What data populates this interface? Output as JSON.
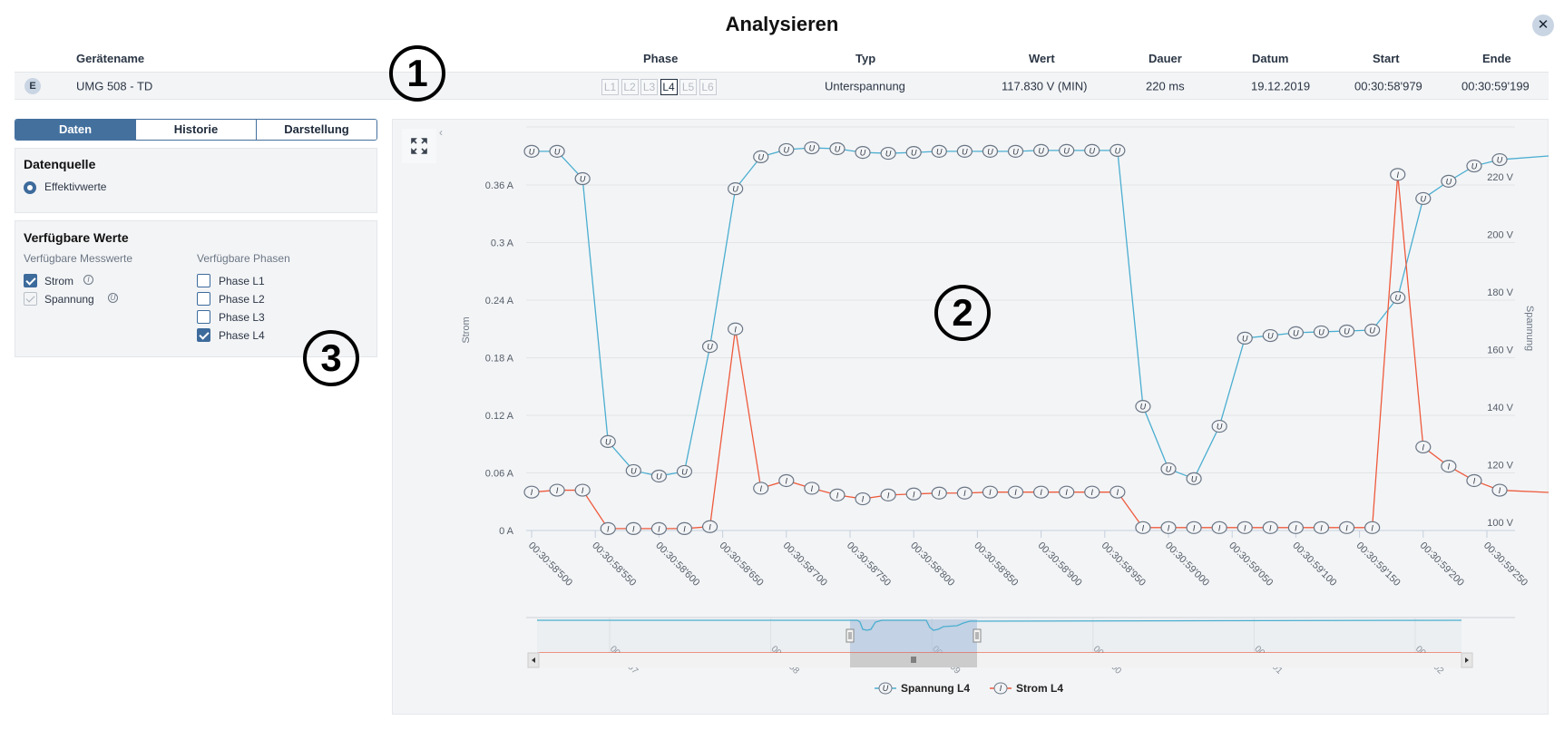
{
  "dialog": {
    "title": "Analysieren",
    "close_icon": "close-icon"
  },
  "event_table": {
    "headers": {
      "device": "Gerätename",
      "phase": "Phase",
      "type": "Typ",
      "value": "Wert",
      "duration": "Dauer",
      "date": "Datum",
      "start": "Start",
      "end": "Ende"
    },
    "row": {
      "badge": "E",
      "device": "UMG 508 - TD",
      "phases": [
        "L1",
        "L2",
        "L3",
        "L4",
        "L5",
        "L6"
      ],
      "active_phase": "L4",
      "type": "Unterspannung",
      "value": "117.830 V (MIN)",
      "duration": "220 ms",
      "date": "19.12.2019",
      "start": "00:30:58'979",
      "end": "00:30:59'199"
    }
  },
  "annotations": [
    "1",
    "2",
    "3"
  ],
  "sidebar": {
    "tabs": [
      {
        "label": "Daten",
        "active": true
      },
      {
        "label": "Historie",
        "active": false
      },
      {
        "label": "Darstellung",
        "active": false
      }
    ],
    "datasource": {
      "title": "Datenquelle",
      "option": "Effektivwerte"
    },
    "values": {
      "title": "Verfügbare Werte",
      "measures_title": "Verfügbare Messwerte",
      "measures": [
        {
          "label": "Strom",
          "checked": true,
          "disabled": false,
          "icon": "I"
        },
        {
          "label": "Spannung",
          "checked": true,
          "disabled": true,
          "icon": "U"
        }
      ],
      "phases_title": "Verfügbare Phasen",
      "phases": [
        {
          "label": "Phase L1",
          "checked": false
        },
        {
          "label": "Phase L2",
          "checked": false
        },
        {
          "label": "Phase L3",
          "checked": false
        },
        {
          "label": "Phase L4",
          "checked": true
        }
      ]
    }
  },
  "colors": {
    "voltage": "#4aaed0",
    "current": "#ee5a3c",
    "accent": "#44709e",
    "grid": "#e2e4e7"
  },
  "chart_data": {
    "type": "line",
    "title": "",
    "xlabel": "",
    "ylabel_left": "Strom",
    "ylabel_right": "Spannung",
    "x_tick_labels": [
      "00:30:58'500",
      "00:30:58'550",
      "00:30:58'600",
      "00:30:58'650",
      "00:30:58'700",
      "00:30:58'750",
      "00:30:58'800",
      "00:30:58'850",
      "00:30:58'900",
      "00:30:58'950",
      "00:30:59'000",
      "00:30:59'050",
      "00:30:59'100",
      "00:30:59'150",
      "00:30:59'200",
      "00:30:59'250"
    ],
    "y_left_ticks": [
      "0 A",
      "0.06 A",
      "0.12 A",
      "0.18 A",
      "0.24 A",
      "0.3 A",
      "0.36 A"
    ],
    "y_right_ticks": [
      "100 V",
      "120 V",
      "140 V",
      "160 V",
      "180 V",
      "200 V",
      "220 V"
    ],
    "ylim_left": [
      0,
      0.42
    ],
    "ylim_right": [
      100,
      240
    ],
    "x_ms": [
      500,
      520,
      540,
      560,
      580,
      600,
      620,
      640,
      660,
      680,
      700,
      720,
      740,
      760,
      780,
      800,
      820,
      840,
      860,
      880,
      900,
      920,
      940,
      960,
      980,
      1000,
      1020,
      1040,
      1060,
      1080,
      1100,
      1120,
      1140,
      1160,
      1180,
      1200,
      1220,
      1240,
      1260
    ],
    "series": [
      {
        "name": "Spannung L4",
        "axis": "right",
        "unit": "V",
        "values": [
          231.7,
          231.7,
          222.2,
          130.9,
          120.8,
          118.9,
          120.5,
          163.9,
          218.7,
          229.8,
          232.3,
          232.9,
          232.6,
          231.3,
          231.0,
          231.3,
          231.7,
          231.7,
          231.7,
          231.7,
          232.0,
          232.0,
          232.0,
          232.0,
          143.1,
          121.4,
          118.0,
          136.2,
          166.8,
          167.7,
          168.7,
          169.0,
          169.3,
          169.6,
          180.9,
          215.3,
          221.3,
          226.6,
          228.8
        ]
      },
      {
        "name": "Strom L4",
        "axis": "left",
        "unit": "A",
        "values": [
          0.04,
          0.042,
          0.042,
          0.002,
          0.002,
          0.002,
          0.002,
          0.004,
          0.21,
          0.044,
          0.052,
          0.044,
          0.037,
          0.033,
          0.037,
          0.038,
          0.039,
          0.039,
          0.04,
          0.04,
          0.04,
          0.04,
          0.04,
          0.04,
          0.003,
          0.003,
          0.003,
          0.003,
          0.003,
          0.003,
          0.003,
          0.003,
          0.003,
          0.003,
          0.371,
          0.087,
          0.067,
          0.052,
          0.042
        ]
      }
    ],
    "navigator": {
      "labels": [
        "00:30:57",
        "00:30:58",
        "00:30:59",
        "00:31:00",
        "00:31:01",
        "00:31:02"
      ]
    },
    "legend": [
      "Spannung L4",
      "Strom L4"
    ],
    "grid": true,
    "legend_position": "bottom"
  }
}
